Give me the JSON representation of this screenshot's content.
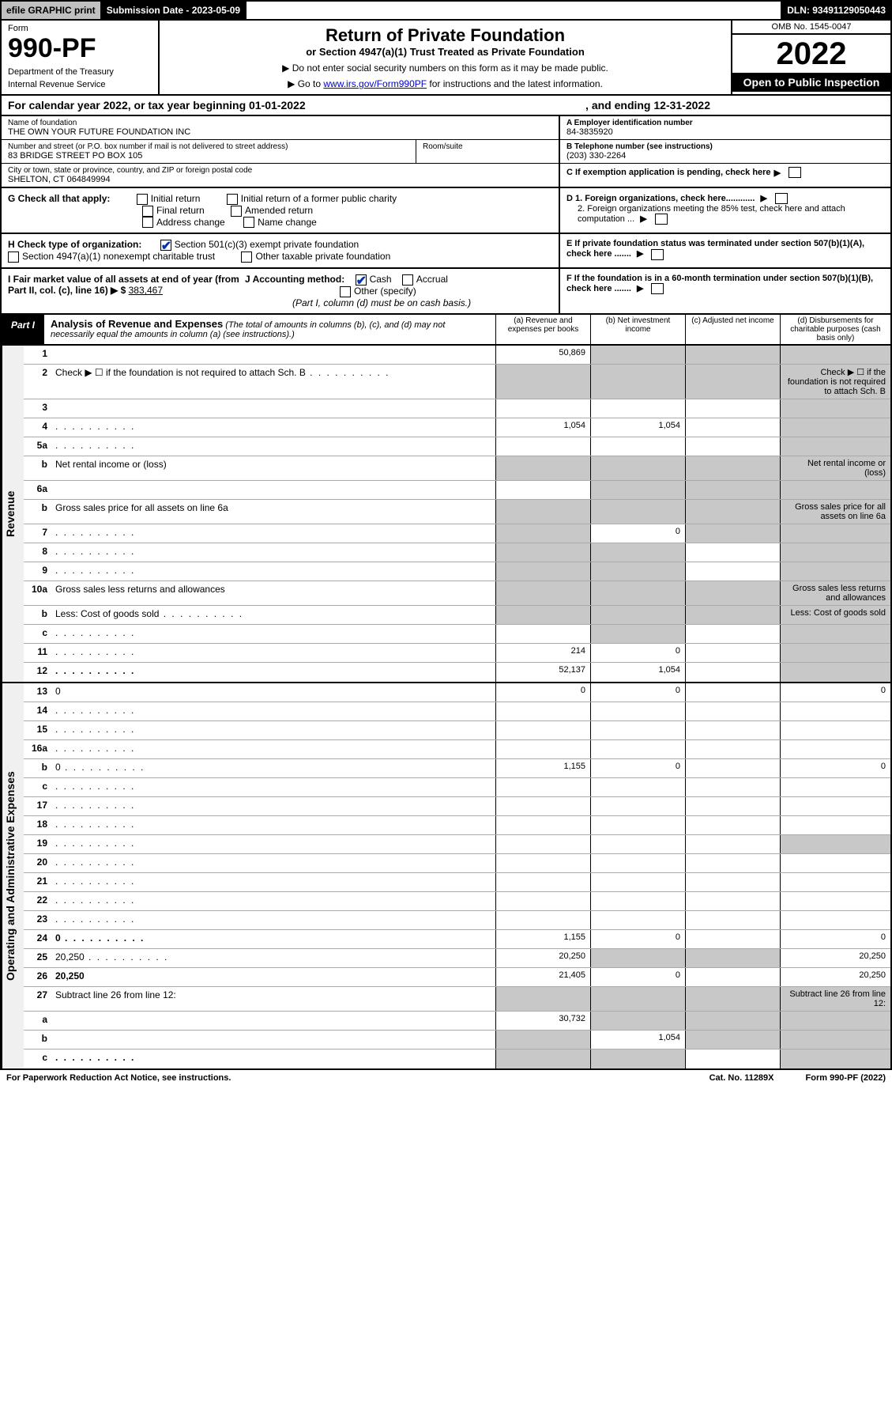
{
  "top_bar": {
    "efile": "efile GRAPHIC print",
    "sub_date_label": "Submission Date - 2023-05-09",
    "dln": "DLN: 93491129050443"
  },
  "header": {
    "form_label": "Form",
    "form_number": "990-PF",
    "dept1": "Department of the Treasury",
    "dept2": "Internal Revenue Service",
    "title": "Return of Private Foundation",
    "subtitle": "or Section 4947(a)(1) Trust Treated as Private Foundation",
    "note1": "▶ Do not enter social security numbers on this form as it may be made public.",
    "note2_pre": "▶ Go to ",
    "note2_link": "www.irs.gov/Form990PF",
    "note2_post": " for instructions and the latest information.",
    "omb": "OMB No. 1545-0047",
    "year": "2022",
    "open_insp": "Open to Public Inspection"
  },
  "cal_year": {
    "begin": "For calendar year 2022, or tax year beginning 01-01-2022",
    "ending": ", and ending 12-31-2022"
  },
  "info": {
    "name_lbl": "Name of foundation",
    "name_val": "THE OWN YOUR FUTURE FOUNDATION INC",
    "addr_lbl": "Number and street (or P.O. box number if mail is not delivered to street address)",
    "addr_val": "83 BRIDGE STREET PO BOX 105",
    "room_lbl": "Room/suite",
    "city_lbl": "City or town, state or province, country, and ZIP or foreign postal code",
    "city_val": "SHELTON, CT  064849994",
    "a_lbl": "A Employer identification number",
    "a_val": "84-3835920",
    "b_lbl": "B Telephone number (see instructions)",
    "b_val": "(203) 330-2264",
    "c_lbl": "C  If exemption application is pending, check here",
    "d1_lbl": "D 1. Foreign organizations, check here............",
    "d2_lbl": "2. Foreign organizations meeting the 85% test, check here and attach computation ...",
    "e_lbl": "E  If private foundation status was terminated under section 507(b)(1)(A), check here .......",
    "f_lbl": "F  If the foundation is in a 60-month termination under section 507(b)(1)(B), check here .......",
    "g_label": "G Check all that apply:",
    "g_opts": [
      "Initial return",
      "Initial return of a former public charity",
      "Final return",
      "Amended return",
      "Address change",
      "Name change"
    ],
    "h_label": "H Check type of organization:",
    "h_opt1": "Section 501(c)(3) exempt private foundation",
    "h_opt2": "Section 4947(a)(1) nonexempt charitable trust",
    "h_opt3": "Other taxable private foundation",
    "i_label": "I Fair market value of all assets at end of year (from Part II, col. (c), line 16) ▶ $",
    "i_val": "383,467",
    "j_label": "J Accounting method:",
    "j_cash": "Cash",
    "j_accrual": "Accrual",
    "j_other": "Other (specify)",
    "j_note": "(Part I, column (d) must be on cash basis.)"
  },
  "part1": {
    "label": "Part I",
    "title": "Analysis of Revenue and Expenses",
    "title_note": " (The total of amounts in columns (b), (c), and (d) may not necessarily equal the amounts in column (a) (see instructions).)",
    "col_a": "(a) Revenue and expenses per books",
    "col_b": "(b) Net investment income",
    "col_c": "(c) Adjusted net income",
    "col_d": "(d) Disbursements for charitable purposes (cash basis only)"
  },
  "side_labels": {
    "revenue": "Revenue",
    "expenses": "Operating and Administrative Expenses"
  },
  "rows": [
    {
      "n": "1",
      "d": "",
      "a": "50,869",
      "b": "",
      "c": "",
      "grey": [
        "b",
        "c",
        "d"
      ]
    },
    {
      "n": "2",
      "d": "Check ▶ ☐ if the foundation is not required to attach Sch. B",
      "dots": true,
      "nocells": true
    },
    {
      "n": "3",
      "d": "",
      "a": "",
      "b": "",
      "c": "",
      "grey": [
        "d"
      ]
    },
    {
      "n": "4",
      "d": "",
      "dots": true,
      "a": "1,054",
      "b": "1,054",
      "c": "",
      "grey": [
        "d"
      ]
    },
    {
      "n": "5a",
      "d": "",
      "dots": true,
      "a": "",
      "b": "",
      "c": "",
      "grey": [
        "d"
      ]
    },
    {
      "n": "b",
      "d": "Net rental income or (loss)",
      "underline": true,
      "nocells": true,
      "grey": [
        "a",
        "b",
        "c",
        "d"
      ]
    },
    {
      "n": "6a",
      "d": "",
      "a": "",
      "b": "",
      "c": "",
      "grey": [
        "b",
        "c",
        "d"
      ]
    },
    {
      "n": "b",
      "d": "Gross sales price for all assets on line 6a",
      "underline": true,
      "nocells": true,
      "grey": [
        "a",
        "b",
        "c",
        "d"
      ]
    },
    {
      "n": "7",
      "d": "",
      "dots": true,
      "a": "",
      "b": "0",
      "c": "",
      "grey": [
        "a",
        "c",
        "d"
      ]
    },
    {
      "n": "8",
      "d": "",
      "dots": true,
      "a": "",
      "b": "",
      "c": "",
      "grey": [
        "a",
        "b",
        "d"
      ]
    },
    {
      "n": "9",
      "d": "",
      "dots": true,
      "a": "",
      "b": "",
      "c": "",
      "grey": [
        "a",
        "b",
        "d"
      ]
    },
    {
      "n": "10a",
      "d": "Gross sales less returns and allowances",
      "underline": true,
      "nocells": true,
      "grey": [
        "a",
        "b",
        "c",
        "d"
      ]
    },
    {
      "n": "b",
      "d": "Less: Cost of goods sold",
      "dots": true,
      "underline": true,
      "nocells": true,
      "grey": [
        "a",
        "b",
        "c",
        "d"
      ]
    },
    {
      "n": "c",
      "d": "",
      "dots": true,
      "a": "",
      "b": "",
      "c": "",
      "grey": [
        "b",
        "d"
      ]
    },
    {
      "n": "11",
      "d": "",
      "dots": true,
      "a": "214",
      "b": "0",
      "c": "",
      "grey": [
        "d"
      ]
    },
    {
      "n": "12",
      "d": "",
      "dots": true,
      "bold": true,
      "a": "52,137",
      "b": "1,054",
      "c": "",
      "grey": [
        "d"
      ]
    }
  ],
  "rows_exp": [
    {
      "n": "13",
      "d": "0",
      "a": "0",
      "b": "0",
      "c": ""
    },
    {
      "n": "14",
      "d": "",
      "dots": true,
      "a": "",
      "b": "",
      "c": ""
    },
    {
      "n": "15",
      "d": "",
      "dots": true,
      "a": "",
      "b": "",
      "c": ""
    },
    {
      "n": "16a",
      "d": "",
      "dots": true,
      "a": "",
      "b": "",
      "c": ""
    },
    {
      "n": "b",
      "d": "0",
      "dots": true,
      "a": "1,155",
      "b": "0",
      "c": ""
    },
    {
      "n": "c",
      "d": "",
      "dots": true,
      "a": "",
      "b": "",
      "c": ""
    },
    {
      "n": "17",
      "d": "",
      "dots": true,
      "a": "",
      "b": "",
      "c": ""
    },
    {
      "n": "18",
      "d": "",
      "dots": true,
      "a": "",
      "b": "",
      "c": ""
    },
    {
      "n": "19",
      "d": "",
      "dots": true,
      "a": "",
      "b": "",
      "c": "",
      "grey": [
        "d"
      ]
    },
    {
      "n": "20",
      "d": "",
      "dots": true,
      "a": "",
      "b": "",
      "c": ""
    },
    {
      "n": "21",
      "d": "",
      "dots": true,
      "a": "",
      "b": "",
      "c": ""
    },
    {
      "n": "22",
      "d": "",
      "dots": true,
      "a": "",
      "b": "",
      "c": ""
    },
    {
      "n": "23",
      "d": "",
      "dots": true,
      "a": "",
      "b": "",
      "c": ""
    },
    {
      "n": "24",
      "d": "0",
      "dots": true,
      "bold": true,
      "a": "1,155",
      "b": "0",
      "c": ""
    },
    {
      "n": "25",
      "d": "20,250",
      "dots": true,
      "a": "20,250",
      "b": "",
      "c": "",
      "grey": [
        "b",
        "c"
      ]
    },
    {
      "n": "26",
      "d": "20,250",
      "bold": true,
      "a": "21,405",
      "b": "0",
      "c": ""
    },
    {
      "n": "27",
      "d": "Subtract line 26 from line 12:",
      "nocells": true,
      "grey": [
        "a",
        "b",
        "c",
        "d"
      ]
    },
    {
      "n": "a",
      "d": "",
      "bold": true,
      "a": "30,732",
      "b": "",
      "c": "",
      "grey": [
        "b",
        "c",
        "d"
      ]
    },
    {
      "n": "b",
      "d": "",
      "bold": true,
      "a": "",
      "b": "1,054",
      "c": "",
      "grey": [
        "a",
        "c",
        "d"
      ]
    },
    {
      "n": "c",
      "d": "",
      "dots": true,
      "bold": true,
      "a": "",
      "b": "",
      "c": "",
      "grey": [
        "a",
        "b",
        "d"
      ]
    }
  ],
  "footer": {
    "left": "For Paperwork Reduction Act Notice, see instructions.",
    "mid": "Cat. No. 11289X",
    "right": "Form 990-PF (2022)"
  },
  "colors": {
    "black": "#000000",
    "link": "#0000cc",
    "check": "#0033aa",
    "grey_cell": "#c8c8c8",
    "btn_grey": "#c0c0c0"
  }
}
